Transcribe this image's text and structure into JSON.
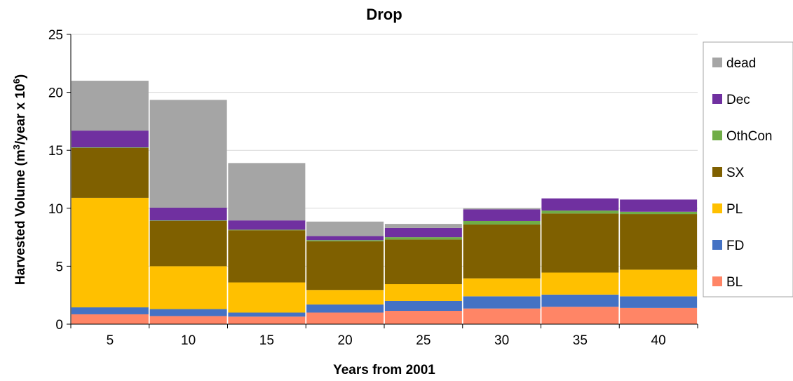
{
  "chart_data": {
    "type": "bar",
    "stacked": true,
    "title": "Drop",
    "xlabel": "Years from 2001",
    "ylabel_prefix": "Harvested Volume (m",
    "ylabel_sup1": "3",
    "ylabel_mid": "/year x 10",
    "ylabel_sup2": "6",
    "ylabel_suffix": ")",
    "ylim": [
      0,
      25
    ],
    "yticks": [
      "0",
      "5",
      "10",
      "15",
      "20",
      "25"
    ],
    "categories": [
      "5",
      "10",
      "15",
      "20",
      "25",
      "30",
      "35",
      "40"
    ],
    "grid": true,
    "legend_position": "right",
    "series": [
      {
        "name": "BL",
        "color": "#FF8566",
        "values": [
          0.85,
          0.7,
          0.65,
          1.0,
          1.15,
          1.35,
          1.5,
          1.4
        ]
      },
      {
        "name": "FD",
        "color": "#4472C4",
        "values": [
          0.6,
          0.6,
          0.35,
          0.7,
          0.85,
          1.05,
          1.05,
          1.0
        ]
      },
      {
        "name": "PL",
        "color": "#FFC000",
        "values": [
          9.45,
          3.7,
          2.6,
          1.25,
          1.45,
          1.55,
          1.9,
          2.3
        ]
      },
      {
        "name": "SX",
        "color": "#7F6000",
        "values": [
          4.3,
          3.9,
          4.5,
          4.2,
          3.85,
          4.65,
          5.1,
          4.8
        ]
      },
      {
        "name": "OthCon",
        "color": "#70AD47",
        "values": [
          0.05,
          0.05,
          0.05,
          0.1,
          0.2,
          0.3,
          0.25,
          0.2
        ]
      },
      {
        "name": "Dec",
        "color": "#7030A0",
        "values": [
          1.45,
          1.1,
          0.8,
          0.35,
          0.8,
          1.0,
          1.05,
          1.05
        ]
      },
      {
        "name": "dead",
        "color": "#A5A5A5",
        "values": [
          4.3,
          9.3,
          4.95,
          1.25,
          0.35,
          0.1,
          0,
          0
        ]
      }
    ]
  }
}
